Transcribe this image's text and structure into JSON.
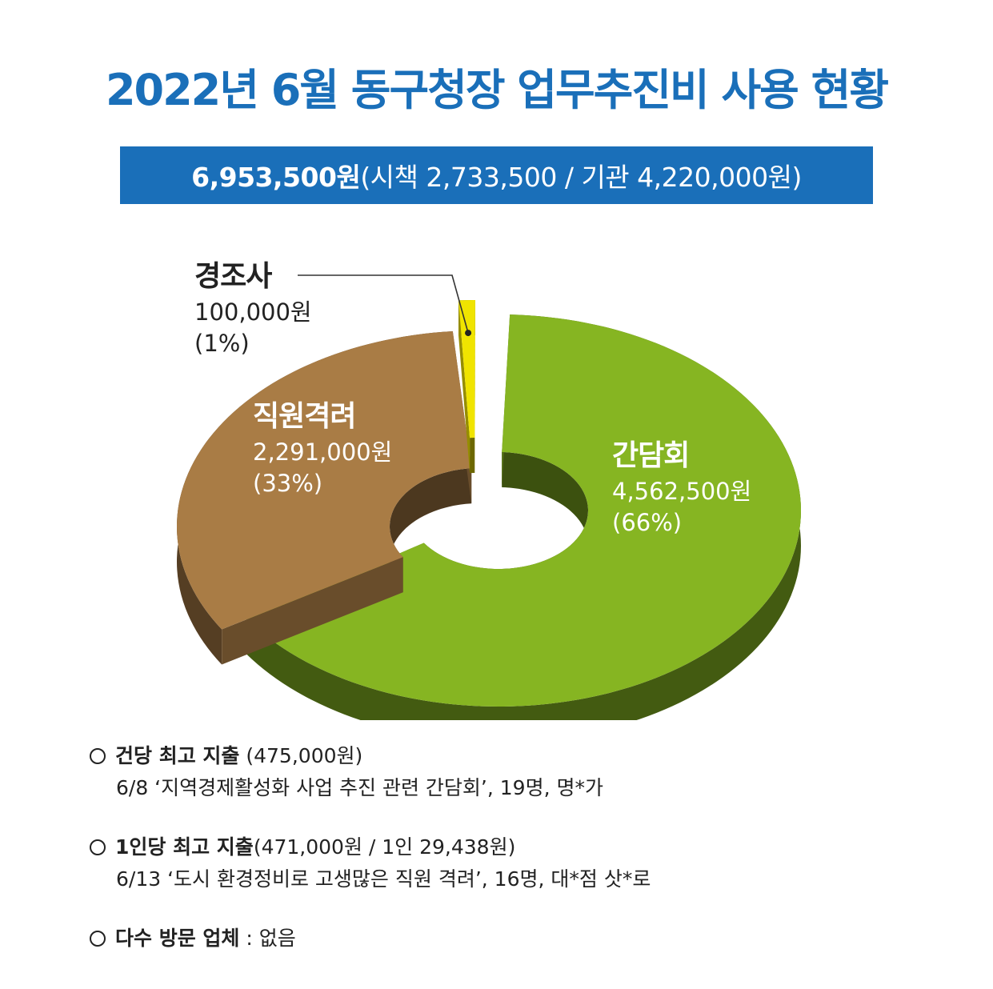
{
  "title": "2022년 6월 동구청장 업무추진비 사용 현황",
  "summary": {
    "total": "6,953,500원",
    "detail": "(시책 2,733,500 / 기관 4,220,000원)"
  },
  "chart_data": {
    "type": "pie",
    "style": "3d-donut",
    "series": [
      {
        "name": "간담회",
        "value": 4562500,
        "value_label": "4,562,500원",
        "percent_label": "(66%)",
        "color": "#86b522"
      },
      {
        "name": "직원격려",
        "value": 2291000,
        "value_label": "2,291,000원",
        "percent_label": "(33%)",
        "color": "#a97c45"
      },
      {
        "name": "경조사",
        "value": 100000,
        "value_label": "100,000원",
        "percent_label": "(1%)",
        "color": "#f0e400"
      }
    ]
  },
  "notes": [
    {
      "head": "건당 최고 지출",
      "head_rest": " (475,000원)",
      "line2": "6/8 ‘지역경제활성화 사업 추진 관련 간담회’, 19명, 명*가"
    },
    {
      "head": "1인당 최고 지출",
      "head_rest": "(471,000원 / 1인 29,438원)",
      "line2": "6/13 ‘도시 환경정비로 고생많은 직원 격려’, 16명, 대*점 삿*로"
    },
    {
      "head": "다수 방문 업체",
      "head_rest": " : 없음",
      "line2": ""
    }
  ]
}
